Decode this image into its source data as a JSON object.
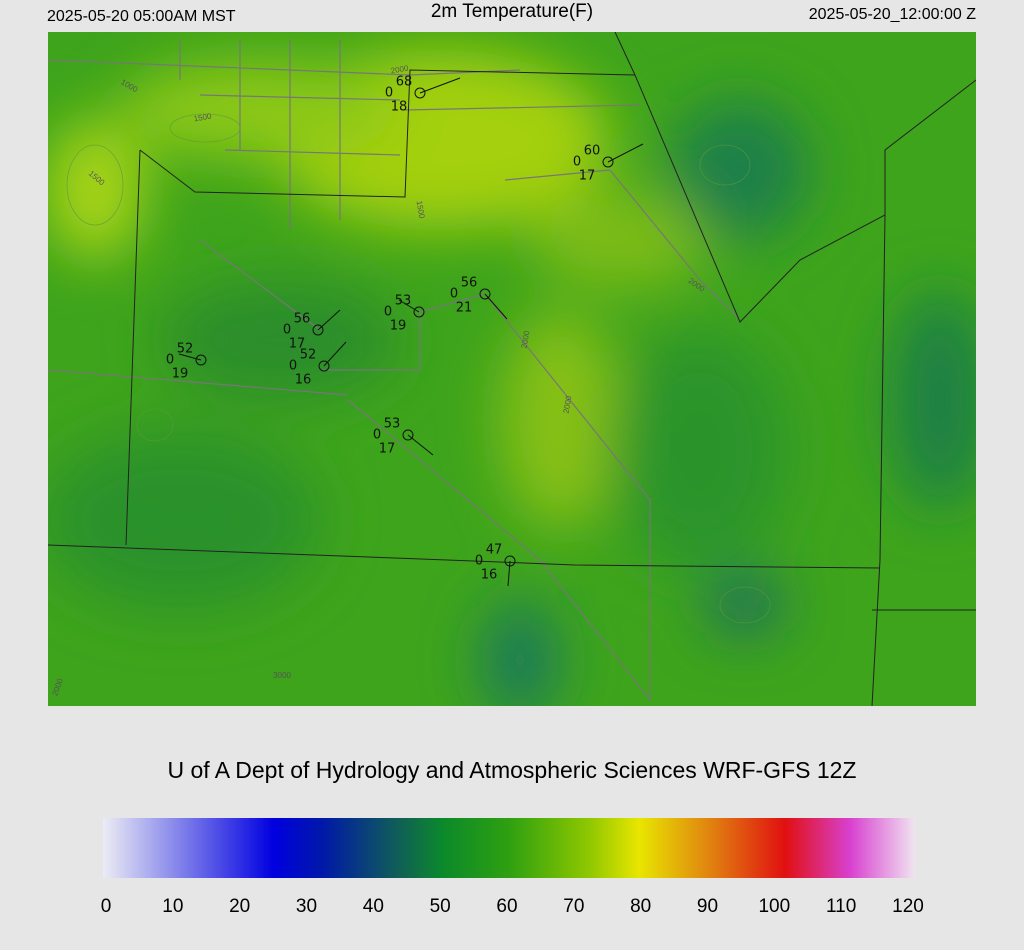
{
  "header": {
    "left": "2025-05-20 05:00AM MST",
    "title": "2m Temperature(F)",
    "right": "2025-05-20_12:00:00 Z"
  },
  "stations": [
    {
      "temperature": 68,
      "code": 0,
      "dewpoint": 18
    },
    {
      "temperature": 60,
      "code": 0,
      "dewpoint": 17
    },
    {
      "temperature": 56,
      "code": 0,
      "dewpoint": 21
    },
    {
      "temperature": 53,
      "code": 0,
      "dewpoint": 19
    },
    {
      "temperature": 56,
      "code": 0,
      "dewpoint": 17
    },
    {
      "temperature": 52,
      "code": 0,
      "dewpoint": 16
    },
    {
      "temperature": 52,
      "code": 0,
      "dewpoint": 19
    },
    {
      "temperature": 53,
      "code": 0,
      "dewpoint": 17
    },
    {
      "temperature": 47,
      "code": 0,
      "dewpoint": 16
    }
  ],
  "contour_labels": [
    "1000",
    "1500",
    "1500",
    "2000",
    "1500",
    "2000",
    "2000",
    "2000",
    "3000",
    "2000"
  ],
  "footer": "U of A Dept of Hydrology and Atmospheric Sciences WRF-GFS 12Z",
  "colorbar": {
    "range": [
      0,
      120
    ],
    "ticks": [
      0,
      10,
      20,
      30,
      40,
      50,
      60,
      70,
      80,
      90,
      100,
      110,
      120
    ]
  }
}
